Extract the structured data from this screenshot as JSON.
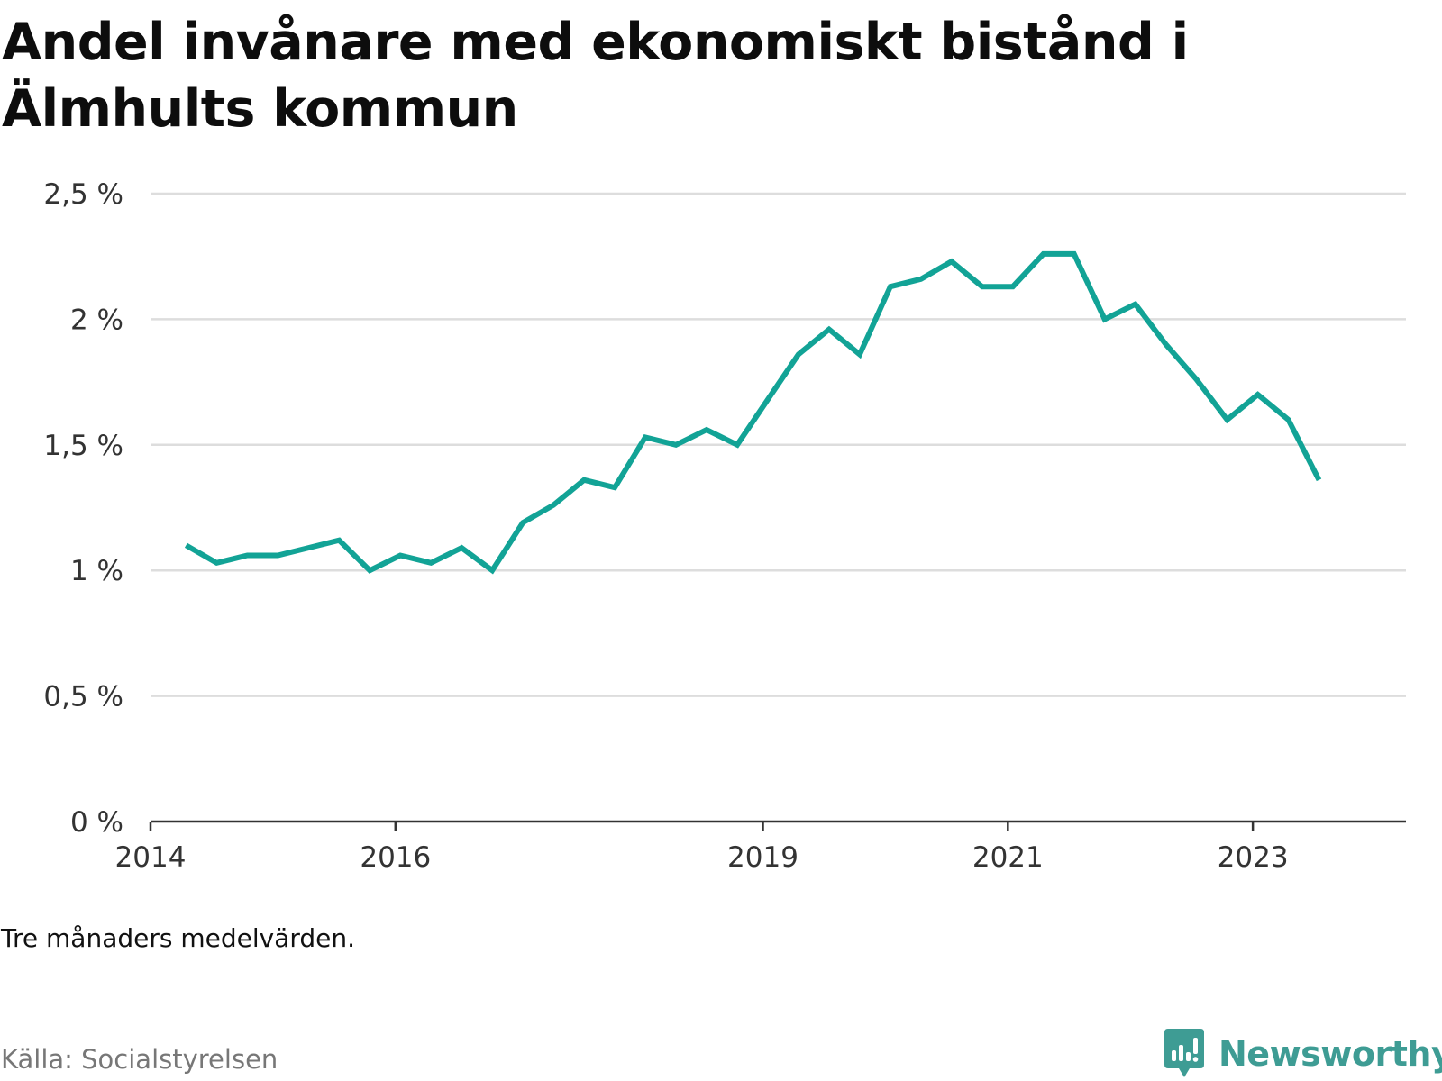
{
  "title": "Andel invånare med ekonomiskt bistånd i Älmhults kommun",
  "note": "Tre månaders medelvärden.",
  "source": "Källa: Socialstyrelsen",
  "brand": "Newsworthy",
  "colors": {
    "line": "#12a396",
    "grid": "#dddddd",
    "axis": "#333333",
    "brand": "#3e9c94"
  },
  "chart_data": {
    "type": "line",
    "title": "Andel invånare med ekonomiskt bistånd i Älmhults kommun",
    "xlabel": "",
    "ylabel": "",
    "xlim": [
      2014.0,
      2024.25
    ],
    "ylim": [
      0,
      2.5
    ],
    "x_ticks": [
      {
        "value": 2014,
        "label": "2014"
      },
      {
        "value": 2016,
        "label": "2016"
      },
      {
        "value": 2019,
        "label": "2019"
      },
      {
        "value": 2021,
        "label": "2021"
      },
      {
        "value": 2023,
        "label": "2023"
      }
    ],
    "y_ticks": [
      {
        "value": 0,
        "label": "0 %"
      },
      {
        "value": 0.5,
        "label": "0,5 %"
      },
      {
        "value": 1,
        "label": "1 %"
      },
      {
        "value": 1.5,
        "label": "1,5 %"
      },
      {
        "value": 2,
        "label": "2 %"
      },
      {
        "value": 2.5,
        "label": "2,5 %"
      }
    ],
    "grid": true,
    "series": [
      {
        "x": [
          2014.29,
          2014.54,
          2014.79,
          2015.04,
          2015.29,
          2015.54,
          2015.79,
          2016.04,
          2016.29,
          2016.54,
          2016.79,
          2017.04,
          2017.29,
          2017.54,
          2017.79,
          2018.04,
          2018.29,
          2018.54,
          2018.79,
          2019.04,
          2019.29,
          2019.54,
          2019.79,
          2020.04,
          2020.29,
          2020.54,
          2020.79,
          2021.04,
          2021.29,
          2021.54,
          2021.79,
          2022.04,
          2022.29,
          2022.54,
          2022.79,
          2023.04,
          2023.29,
          2023.54
        ],
        "values": [
          1.1,
          1.03,
          1.06,
          1.06,
          1.09,
          1.12,
          1.0,
          1.06,
          1.03,
          1.09,
          1.0,
          1.19,
          1.26,
          1.36,
          1.33,
          1.53,
          1.5,
          1.56,
          1.5,
          1.68,
          1.86,
          1.96,
          1.86,
          2.13,
          2.16,
          2.23,
          2.13,
          2.13,
          2.26,
          2.26,
          2.0,
          2.06,
          1.9,
          1.76,
          1.6,
          1.7,
          1.6,
          1.36
        ]
      }
    ]
  }
}
